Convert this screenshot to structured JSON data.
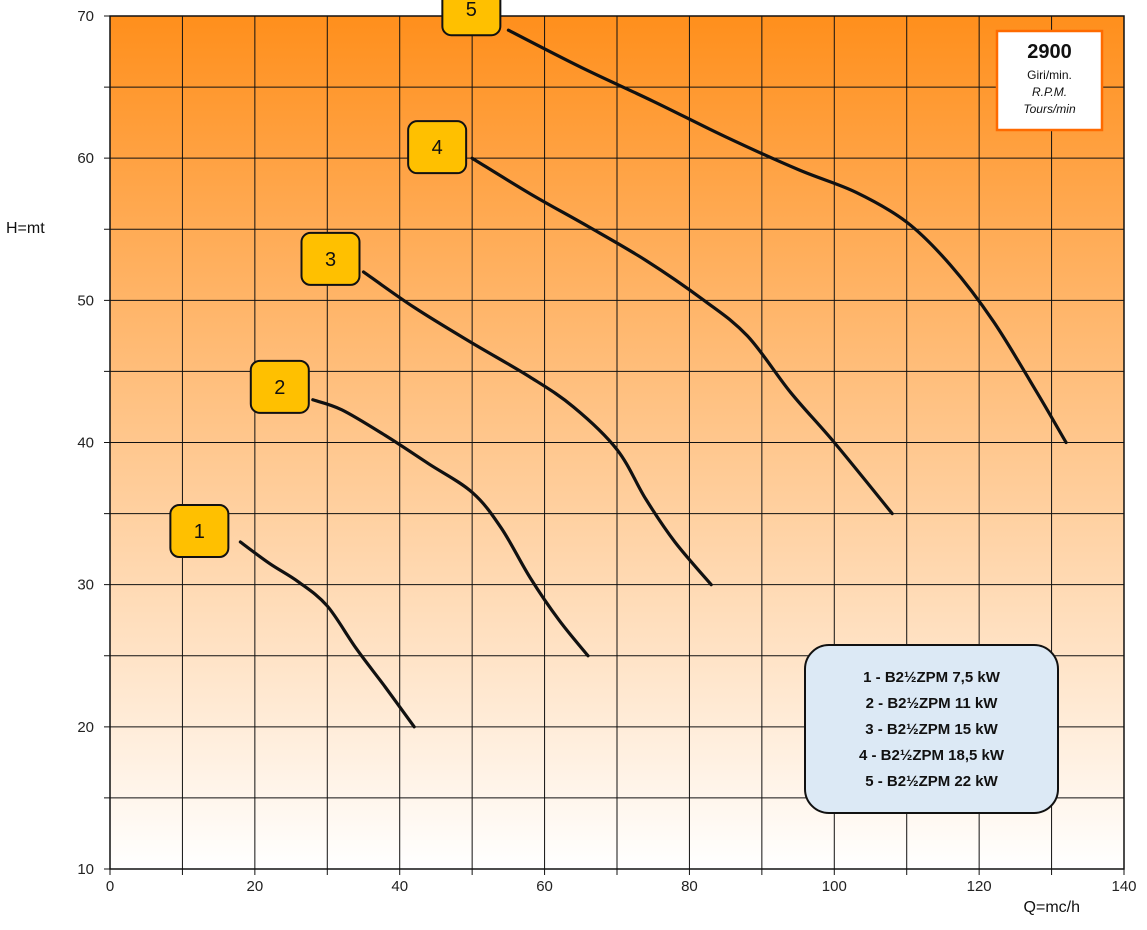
{
  "chart_data": {
    "type": "line",
    "xlabel": "Q=mc/h",
    "ylabel": "H=mt",
    "xlim": [
      0,
      140
    ],
    "ylim": [
      10,
      70
    ],
    "x_ticks": [
      0,
      20,
      40,
      60,
      80,
      100,
      120,
      140
    ],
    "y_ticks": [
      10,
      20,
      30,
      40,
      50,
      60,
      70
    ],
    "x_grid_step": 10,
    "y_grid_step": 5,
    "grid": true,
    "background_gradient": [
      "#ff8f1c",
      "#ffffff"
    ],
    "series": [
      {
        "label": "1",
        "x": [
          18,
          22,
          26,
          30,
          34,
          38,
          42
        ],
        "y": [
          33,
          31.5,
          30.2,
          28.5,
          25.5,
          22.8,
          20
        ]
      },
      {
        "label": "2",
        "x": [
          28,
          32,
          38,
          44,
          50,
          54,
          58,
          62,
          66
        ],
        "y": [
          43,
          42.3,
          40.5,
          38.5,
          36.5,
          34,
          30.5,
          27.5,
          25
        ]
      },
      {
        "label": "3",
        "x": [
          35,
          42,
          50,
          58,
          64,
          70,
          74,
          78,
          83
        ],
        "y": [
          52,
          49.5,
          47,
          44.6,
          42.5,
          39.5,
          36,
          33,
          30
        ]
      },
      {
        "label": "4",
        "x": [
          50,
          58,
          66,
          74,
          82,
          88,
          94,
          100,
          108
        ],
        "y": [
          60,
          57.5,
          55.2,
          52.8,
          50,
          47.5,
          43.5,
          40,
          35
        ]
      },
      {
        "label": "5",
        "x": [
          55,
          65,
          75,
          85,
          95,
          103,
          110,
          116,
          122,
          128,
          132
        ],
        "y": [
          69,
          66.4,
          64,
          61.5,
          59.2,
          57.6,
          55.5,
          52.5,
          48.5,
          43.5,
          40
        ]
      }
    ],
    "curve_labels": [
      "1",
      "2",
      "3",
      "4",
      "5"
    ],
    "legend": {
      "placement": "bottom-right",
      "entries": [
        "1 - B2½ZPM 7,5 kW",
        "2 - B2½ZPM 11 kW",
        "3 - B2½ZPM 15 kW",
        "4 - B2½ZPM 18,5 kW",
        "5 - B2½ZPM 22 kW"
      ]
    },
    "rpm_box": {
      "placement": "top-right",
      "value": "2900",
      "lines": [
        "Giri/min.",
        "R.P.M.",
        "Tours/min"
      ]
    },
    "colors": {
      "curve": "#111111",
      "label_fill": "#ffc000",
      "legend_fill": "#dce9f5",
      "rpm_border": "#ff6a00",
      "grid": "#111111"
    }
  }
}
